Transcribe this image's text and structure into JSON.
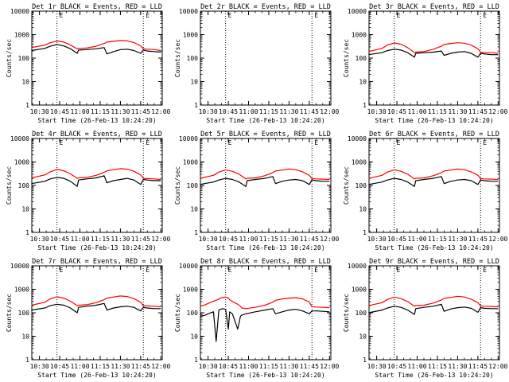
{
  "colors": {
    "events": "#000000",
    "lld": "#ff0000",
    "background": "#ffffff",
    "axes": "#000000"
  },
  "shared": {
    "ylabel": "Counts/sec",
    "xlabel": "Start Time (26-Feb-13 10:24:20)",
    "x_ticks": [
      "10:30",
      "10:45",
      "11:00",
      "11:15",
      "11:30",
      "11:45",
      "12:00"
    ],
    "y_ticks": [
      "1",
      "10",
      "100",
      "1000",
      "10000"
    ],
    "marker_glyph": "E",
    "dotted_markers": [
      "10:43",
      "11:47"
    ],
    "x_range": [
      "10:24:20",
      "12:01"
    ],
    "y_range": [
      1,
      10000
    ],
    "y_scale": "log"
  },
  "chart_data": [
    {
      "type": "line",
      "title": "Det 1r BLACK = Events, RED = LLD",
      "xlabel": "Start Time (26-Feb-13 10:24:20)",
      "ylabel": "Counts/sec",
      "x": [
        "10:24",
        "10:34",
        "10:38",
        "10:43",
        "10:48",
        "10:53",
        "10:58",
        "10:59",
        "11:05",
        "11:12",
        "11:18",
        "11:20",
        "11:25",
        "11:30",
        "11:35",
        "11:40",
        "11:45",
        "11:47",
        "11:50",
        "11:55",
        "12:00"
      ],
      "series": [
        {
          "name": "Events",
          "color": "#000000",
          "values": [
            210,
            260,
            320,
            380,
            330,
            250,
            160,
            220,
            230,
            250,
            280,
            150,
            190,
            230,
            240,
            210,
            160,
            220,
            200,
            190,
            180
          ]
        },
        {
          "name": "LLD",
          "color": "#ff0000",
          "values": [
            280,
            360,
            450,
            540,
            480,
            360,
            250,
            260,
            270,
            320,
            420,
            480,
            520,
            560,
            540,
            460,
            330,
            250,
            240,
            230,
            210
          ]
        }
      ]
    },
    {
      "type": "line",
      "title": "Det 2r BLACK = Events, RED = LLD",
      "xlabel": "Start Time (26-Feb-13 10:24:20)",
      "ylabel": "Counts/sec",
      "x": [],
      "series": []
    },
    {
      "type": "line",
      "title": "Det 3r BLACK = Events, RED = LLD",
      "xlabel": "Start Time (26-Feb-13 10:24:20)",
      "ylabel": "Counts/sec",
      "x": [
        "10:24",
        "10:34",
        "10:38",
        "10:43",
        "10:48",
        "10:53",
        "10:58",
        "10:59",
        "11:05",
        "11:12",
        "11:18",
        "11:20",
        "11:25",
        "11:30",
        "11:35",
        "11:40",
        "11:45",
        "11:47",
        "11:50",
        "11:55",
        "12:00"
      ],
      "series": [
        {
          "name": "Events",
          "color": "#000000",
          "values": [
            140,
            170,
            210,
            240,
            220,
            170,
            110,
            160,
            170,
            180,
            200,
            130,
            160,
            180,
            190,
            160,
            110,
            160,
            150,
            140,
            140
          ]
        },
        {
          "name": "LLD",
          "color": "#ff0000",
          "values": [
            190,
            260,
            360,
            440,
            390,
            280,
            170,
            180,
            190,
            240,
            320,
            380,
            420,
            450,
            430,
            360,
            250,
            180,
            170,
            170,
            160
          ]
        }
      ]
    },
    {
      "type": "line",
      "title": "Det 4r BLACK = Events, RED = LLD",
      "xlabel": "Start Time (26-Feb-13 10:24:20)",
      "ylabel": "Counts/sec",
      "x": [
        "10:24",
        "10:34",
        "10:38",
        "10:43",
        "10:48",
        "10:53",
        "10:58",
        "10:59",
        "11:05",
        "11:12",
        "11:18",
        "11:20",
        "11:25",
        "11:30",
        "11:35",
        "11:40",
        "11:45",
        "11:47",
        "11:50",
        "11:55",
        "12:00"
      ],
      "series": [
        {
          "name": "Events",
          "color": "#000000",
          "values": [
            120,
            150,
            190,
            220,
            200,
            150,
            90,
            170,
            190,
            210,
            260,
            130,
            160,
            180,
            200,
            170,
            110,
            180,
            170,
            160,
            160
          ]
        },
        {
          "name": "LLD",
          "color": "#ff0000",
          "values": [
            210,
            280,
            380,
            480,
            420,
            310,
            200,
            210,
            220,
            270,
            360,
            420,
            470,
            520,
            490,
            400,
            280,
            200,
            195,
            190,
            180
          ]
        }
      ]
    },
    {
      "type": "line",
      "title": "Det 5r BLACK = Events, RED = LLD",
      "xlabel": "Start Time (26-Feb-13 10:24:20)",
      "ylabel": "Counts/sec",
      "x": [
        "10:24",
        "10:34",
        "10:38",
        "10:43",
        "10:48",
        "10:53",
        "10:58",
        "10:59",
        "11:05",
        "11:12",
        "11:18",
        "11:20",
        "11:25",
        "11:30",
        "11:35",
        "11:40",
        "11:45",
        "11:47",
        "11:50",
        "11:55",
        "12:00"
      ],
      "series": [
        {
          "name": "Events",
          "color": "#000000",
          "values": [
            110,
            140,
            170,
            200,
            180,
            140,
            90,
            160,
            180,
            200,
            240,
            120,
            150,
            170,
            180,
            160,
            110,
            170,
            160,
            150,
            150
          ]
        },
        {
          "name": "LLD",
          "color": "#ff0000",
          "values": [
            200,
            270,
            370,
            460,
            400,
            300,
            190,
            200,
            210,
            260,
            350,
            410,
            450,
            500,
            470,
            380,
            270,
            195,
            190,
            185,
            180
          ]
        }
      ]
    },
    {
      "type": "line",
      "title": "Det 6r BLACK = Events, RED = LLD",
      "xlabel": "Start Time (26-Feb-13 10:24:20)",
      "ylabel": "Counts/sec",
      "x": [
        "10:24",
        "10:34",
        "10:38",
        "10:43",
        "10:48",
        "10:53",
        "10:58",
        "10:59",
        "11:05",
        "11:12",
        "11:18",
        "11:20",
        "11:25",
        "11:30",
        "11:35",
        "11:40",
        "11:45",
        "11:47",
        "11:50",
        "11:55",
        "12:00"
      ],
      "series": [
        {
          "name": "Events",
          "color": "#000000",
          "values": [
            110,
            140,
            170,
            200,
            180,
            140,
            90,
            160,
            180,
            200,
            240,
            120,
            150,
            170,
            180,
            160,
            110,
            170,
            160,
            150,
            150
          ]
        },
        {
          "name": "LLD",
          "color": "#ff0000",
          "values": [
            200,
            270,
            370,
            460,
            400,
            300,
            190,
            200,
            210,
            260,
            350,
            410,
            450,
            500,
            470,
            380,
            270,
            195,
            190,
            185,
            180
          ]
        }
      ]
    },
    {
      "type": "line",
      "title": "Det 7r BLACK = Events, RED = LLD",
      "xlabel": "Start Time (26-Feb-13 10:24:20)",
      "ylabel": "Counts/sec",
      "x": [
        "10:24",
        "10:34",
        "10:38",
        "10:43",
        "10:48",
        "10:53",
        "10:58",
        "10:59",
        "11:05",
        "11:12",
        "11:18",
        "11:20",
        "11:25",
        "11:30",
        "11:35",
        "11:40",
        "11:45",
        "11:47",
        "11:50",
        "11:55",
        "12:00"
      ],
      "series": [
        {
          "name": "Events",
          "color": "#000000",
          "values": [
            130,
            160,
            200,
            230,
            210,
            160,
            100,
            170,
            190,
            210,
            250,
            130,
            160,
            180,
            190,
            170,
            120,
            170,
            160,
            150,
            150
          ]
        },
        {
          "name": "LLD",
          "color": "#ff0000",
          "values": [
            210,
            280,
            390,
            480,
            420,
            310,
            200,
            210,
            220,
            270,
            360,
            420,
            470,
            520,
            490,
            400,
            280,
            200,
            195,
            190,
            180
          ]
        }
      ]
    },
    {
      "type": "line",
      "title": "Det 8r BLACK = Events, RED = LLD",
      "xlabel": "Start Time (26-Feb-13 10:24:20)",
      "ylabel": "Counts/sec",
      "x": [
        "10:24",
        "10:28",
        "10:30",
        "10:32",
        "10:34",
        "10:36",
        "10:38",
        "10:39",
        "10:41",
        "10:43",
        "10:45",
        "10:46",
        "10:48",
        "10:52",
        "10:54",
        "10:55",
        "10:58",
        "11:05",
        "11:12",
        "11:18",
        "11:20",
        "11:25",
        "11:30",
        "11:35",
        "11:40",
        "11:45",
        "11:47",
        "11:50",
        "11:55",
        "12:00"
      ],
      "series": [
        {
          "name": "Events",
          "color": "#000000",
          "values": [
            70,
            80,
            90,
            100,
            110,
            6,
            130,
            140,
            150,
            140,
            20,
            110,
            90,
            20,
            70,
            80,
            90,
            110,
            130,
            150,
            90,
            110,
            130,
            140,
            120,
            90,
            120,
            120,
            115,
            110
          ]
        },
        {
          "name": "LLD",
          "color": "#ff0000",
          "values": [
            190,
            220,
            250,
            280,
            310,
            340,
            380,
            420,
            440,
            470,
            430,
            360,
            300,
            230,
            190,
            160,
            150,
            170,
            210,
            280,
            340,
            390,
            420,
            440,
            390,
            290,
            180,
            175,
            170,
            165
          ]
        }
      ]
    },
    {
      "type": "line",
      "title": "Det 9r BLACK = Events, RED = LLD",
      "xlabel": "Start Time (26-Feb-13 10:24:20)",
      "ylabel": "Counts/sec",
      "x": [
        "10:24",
        "10:34",
        "10:38",
        "10:43",
        "10:48",
        "10:53",
        "10:58",
        "10:59",
        "11:05",
        "11:12",
        "11:18",
        "11:20",
        "11:25",
        "11:30",
        "11:35",
        "11:40",
        "11:45",
        "11:47",
        "11:50",
        "11:55",
        "12:00"
      ],
      "series": [
        {
          "name": "Events",
          "color": "#000000",
          "values": [
            100,
            130,
            160,
            190,
            170,
            130,
            85,
            150,
            170,
            190,
            230,
            115,
            145,
            165,
            175,
            155,
            105,
            165,
            155,
            150,
            150
          ]
        },
        {
          "name": "LLD",
          "color": "#ff0000",
          "values": [
            200,
            270,
            370,
            460,
            400,
            300,
            190,
            200,
            210,
            260,
            350,
            410,
            450,
            500,
            470,
            380,
            270,
            195,
            190,
            185,
            180
          ]
        }
      ]
    }
  ]
}
